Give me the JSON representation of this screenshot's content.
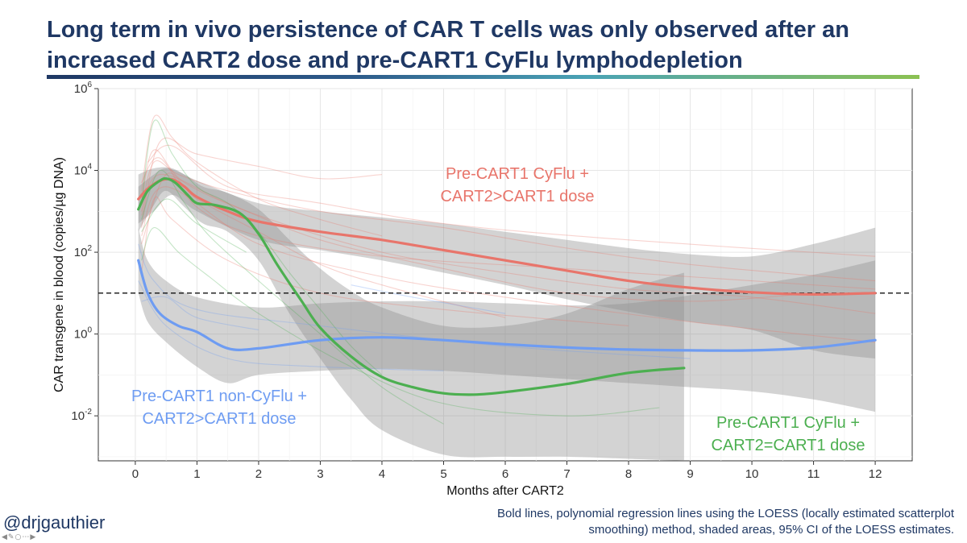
{
  "slide": {
    "title": "Long term in vivo persistence of CAR T cells was only observed after an increased CART2 dose and pre-CART1 CyFlu lymphodepletion",
    "handle": "@drjgauthier",
    "footnote_line1": "Bold lines, polynomial regression lines using the LOESS (locally estimated scatterplot",
    "footnote_line2": "smoothing) method, shaded areas, 95% CI of the LOESS estimates.",
    "toolbar_icons": [
      "arrow-left-icon",
      "pencil-icon",
      "view-icon",
      "more-icon",
      "arrow-right-icon"
    ]
  },
  "chart_data": {
    "type": "line",
    "xlabel": "Months after CART2",
    "ylabel": "CAR transgene in blood (copies/µg DNA)",
    "xlim": [
      -0.6,
      12.6
    ],
    "ylim_log10": [
      -3.1,
      6
    ],
    "y_scale": "log10",
    "x_ticks": [
      "0",
      "1",
      "2",
      "3",
      "4",
      "5",
      "6",
      "7",
      "8",
      "9",
      "10",
      "11",
      "12"
    ],
    "y_ticks": [
      {
        "base": "10",
        "exp": "6",
        "log": 6
      },
      {
        "base": "10",
        "exp": "4",
        "log": 4
      },
      {
        "base": "10",
        "exp": "2",
        "log": 2
      },
      {
        "base": "10",
        "exp": "0",
        "log": 0
      },
      {
        "base": "10",
        "exp": "-2",
        "log": -2
      }
    ],
    "grid": true,
    "threshold": {
      "value": 10,
      "style": "dashed"
    },
    "series": [
      {
        "name_line1": "Pre-CART1 CyFlu +",
        "name_line2": "CART2>CART1 dose",
        "color": "#e8756b",
        "loess": [
          [
            0.05,
            3.3
          ],
          [
            0.2,
            3.55
          ],
          [
            0.4,
            3.75
          ],
          [
            0.6,
            3.78
          ],
          [
            0.8,
            3.6
          ],
          [
            1,
            3.35
          ],
          [
            1.5,
            3.0
          ],
          [
            2,
            2.75
          ],
          [
            3,
            2.5
          ],
          [
            4,
            2.3
          ],
          [
            5,
            2.05
          ],
          [
            6,
            1.8
          ],
          [
            7,
            1.55
          ],
          [
            8,
            1.3
          ],
          [
            9,
            1.13
          ],
          [
            10,
            1.02
          ],
          [
            11,
            0.97
          ],
          [
            12,
            1.0
          ]
        ],
        "ci_upper": [
          [
            0.05,
            3.9
          ],
          [
            0.3,
            4.05
          ],
          [
            0.6,
            4.05
          ],
          [
            1,
            3.75
          ],
          [
            2,
            3.2
          ],
          [
            3,
            3.0
          ],
          [
            4,
            2.85
          ],
          [
            5,
            2.7
          ],
          [
            6,
            2.5
          ],
          [
            7,
            2.3
          ],
          [
            8,
            2.1
          ],
          [
            9,
            1.95
          ],
          [
            10,
            1.9
          ],
          [
            11,
            2.2
          ],
          [
            12,
            2.6
          ]
        ],
        "ci_lower": [
          [
            0.05,
            2.7
          ],
          [
            0.3,
            3.0
          ],
          [
            0.6,
            3.4
          ],
          [
            1,
            3.0
          ],
          [
            2,
            2.3
          ],
          [
            3,
            2.05
          ],
          [
            4,
            1.8
          ],
          [
            5,
            1.5
          ],
          [
            6,
            1.2
          ],
          [
            7,
            0.85
          ],
          [
            8,
            0.55
          ],
          [
            9,
            0.3
          ],
          [
            10,
            0.1
          ],
          [
            11,
            -0.4
          ],
          [
            12,
            -0.6
          ]
        ],
        "individual": [
          [
            [
              0.1,
              3.5
            ],
            [
              0.3,
              5.3
            ],
            [
              0.6,
              4.8
            ],
            [
              1,
              4.2
            ],
            [
              2,
              3.3
            ],
            [
              3,
              2.8
            ],
            [
              4,
              2.4
            ]
          ],
          [
            [
              0.1,
              3.0
            ],
            [
              0.3,
              4.2
            ],
            [
              0.7,
              3.9
            ],
            [
              1.5,
              3.5
            ],
            [
              3,
              3.0
            ],
            [
              5,
              2.6
            ],
            [
              7,
              2.1
            ],
            [
              9,
              1.7
            ],
            [
              12,
              1.3
            ]
          ],
          [
            [
              0.1,
              2.6
            ],
            [
              0.4,
              4.7
            ],
            [
              1,
              4.4
            ],
            [
              2,
              4.1
            ],
            [
              3,
              3.8
            ],
            [
              4,
              3.9
            ]
          ],
          [
            [
              0.1,
              3.2
            ],
            [
              0.3,
              4.5
            ],
            [
              0.8,
              3.7
            ],
            [
              2,
              2.9
            ],
            [
              4,
              2.0
            ],
            [
              6,
              1.5
            ],
            [
              8,
              1.1
            ],
            [
              10,
              0.9
            ],
            [
              12,
              0.5
            ]
          ],
          [
            [
              0.1,
              2.2
            ],
            [
              0.5,
              3.9
            ],
            [
              1,
              3.3
            ],
            [
              2,
              2.5
            ],
            [
              3,
              1.7
            ],
            [
              4,
              1.2
            ],
            [
              6,
              0.4
            ]
          ],
          [
            [
              0.1,
              3.7
            ],
            [
              0.4,
              4.3
            ],
            [
              1,
              3.1
            ],
            [
              2,
              2.4
            ],
            [
              4,
              1.9
            ],
            [
              7,
              1.6
            ],
            [
              10,
              1.3
            ],
            [
              12,
              1.1
            ]
          ],
          [
            [
              0.1,
              2.9
            ],
            [
              0.4,
              3.9
            ],
            [
              1.5,
              3.2
            ],
            [
              3,
              2.3
            ],
            [
              5,
              1.6
            ],
            [
              7,
              1.0
            ],
            [
              9,
              0.8
            ],
            [
              11,
              1.0
            ]
          ],
          [
            [
              0.1,
              1.5
            ],
            [
              0.3,
              3.3
            ],
            [
              0.6,
              2.8
            ],
            [
              1.5,
              1.8
            ],
            [
              3,
              1.0
            ],
            [
              5,
              0.6
            ],
            [
              8,
              0.2
            ]
          ],
          [
            [
              0.2,
              4.2
            ],
            [
              0.6,
              4.6
            ],
            [
              1.5,
              3.6
            ],
            [
              3,
              3.2
            ],
            [
              5,
              2.7
            ],
            [
              8,
              2.3
            ],
            [
              12,
              1.9
            ]
          ],
          [
            [
              0.1,
              2.4
            ],
            [
              0.5,
              3.6
            ],
            [
              2,
              2.2
            ],
            [
              4,
              1.4
            ],
            [
              6,
              0.9
            ],
            [
              9,
              0.3
            ],
            [
              12,
              -0.2
            ]
          ]
        ]
      },
      {
        "name_line1": "Pre-CART1 non-CyFlu +",
        "name_line2": "CART2>CART1 dose",
        "color": "#6e9cf2",
        "loess": [
          [
            0.05,
            1.8
          ],
          [
            0.2,
            1.0
          ],
          [
            0.4,
            0.5
          ],
          [
            0.7,
            0.2
          ],
          [
            1,
            0.05
          ],
          [
            1.5,
            -0.35
          ],
          [
            2,
            -0.35
          ],
          [
            3,
            -0.15
          ],
          [
            4,
            -0.08
          ],
          [
            5,
            -0.15
          ],
          [
            6,
            -0.25
          ],
          [
            7,
            -0.33
          ],
          [
            8,
            -0.38
          ],
          [
            9,
            -0.4
          ],
          [
            10,
            -0.4
          ],
          [
            11,
            -0.33
          ],
          [
            12,
            -0.15
          ]
        ],
        "ci_upper": [
          [
            0.05,
            2.6
          ],
          [
            0.2,
            1.8
          ],
          [
            0.5,
            1.3
          ],
          [
            1,
            0.9
          ],
          [
            2,
            0.65
          ],
          [
            3,
            0.75
          ],
          [
            4,
            0.8
          ],
          [
            5,
            0.8
          ],
          [
            6,
            0.75
          ],
          [
            7,
            0.7
          ],
          [
            8,
            0.75
          ],
          [
            9,
            0.95
          ],
          [
            10,
            1.2
          ],
          [
            11,
            1.45
          ],
          [
            12,
            1.8
          ]
        ],
        "ci_lower": [
          [
            0.05,
            1.0
          ],
          [
            0.2,
            0.3
          ],
          [
            0.5,
            -0.2
          ],
          [
            1,
            -0.8
          ],
          [
            1.5,
            -1.2
          ],
          [
            2,
            -1.0
          ],
          [
            3,
            -0.9
          ],
          [
            4,
            -0.85
          ],
          [
            5,
            -0.9
          ],
          [
            6,
            -1.0
          ],
          [
            7,
            -1.1
          ],
          [
            8,
            -1.2
          ],
          [
            9,
            -1.3
          ],
          [
            10,
            -1.4
          ],
          [
            11,
            -1.6
          ],
          [
            12,
            -1.9
          ]
        ],
        "individual": [
          [
            [
              0.05,
              2.2
            ],
            [
              0.3,
              1.3
            ],
            [
              1,
              0.6
            ],
            [
              3,
              0.2
            ],
            [
              6,
              -0.3
            ],
            [
              9,
              -0.6
            ]
          ],
          [
            [
              0.05,
              1.3
            ],
            [
              0.5,
              0.2
            ],
            [
              1.5,
              -0.6
            ],
            [
              3,
              -0.8
            ],
            [
              5,
              -0.9
            ]
          ],
          [
            [
              0.1,
              0.8
            ],
            [
              0.5,
              0.9
            ],
            [
              1,
              0.4
            ],
            [
              2,
              0.1
            ]
          ],
          [
            [
              3.5,
              1.2
            ],
            [
              4.5,
              0.9
            ],
            [
              6,
              0.5
            ]
          ]
        ]
      },
      {
        "name_line1": "Pre-CART1 CyFlu +",
        "name_line2": "CART2=CART1 dose",
        "color": "#4caf50",
        "loess": [
          [
            0.05,
            3.05
          ],
          [
            0.2,
            3.5
          ],
          [
            0.4,
            3.75
          ],
          [
            0.5,
            3.8
          ],
          [
            0.65,
            3.7
          ],
          [
            0.85,
            3.4
          ],
          [
            1,
            3.2
          ],
          [
            1.3,
            3.15
          ],
          [
            1.7,
            2.95
          ],
          [
            2,
            2.45
          ],
          [
            2.3,
            1.7
          ],
          [
            2.7,
            0.8
          ],
          [
            3,
            0.15
          ],
          [
            3.5,
            -0.55
          ],
          [
            4,
            -1.05
          ],
          [
            4.5,
            -1.3
          ],
          [
            5,
            -1.45
          ],
          [
            5.5,
            -1.48
          ],
          [
            6,
            -1.42
          ],
          [
            7,
            -1.22
          ],
          [
            8,
            -0.95
          ],
          [
            8.9,
            -0.83
          ]
        ],
        "ci_upper": [
          [
            0.05,
            3.6
          ],
          [
            0.3,
            3.9
          ],
          [
            0.5,
            4.05
          ],
          [
            0.8,
            3.9
          ],
          [
            1.1,
            3.6
          ],
          [
            1.5,
            3.45
          ],
          [
            2,
            3.05
          ],
          [
            2.5,
            2.3
          ],
          [
            3,
            1.6
          ],
          [
            3.5,
            1.05
          ],
          [
            4,
            0.65
          ],
          [
            5,
            0.2
          ],
          [
            6,
            0.2
          ],
          [
            7,
            0.5
          ],
          [
            8,
            1.1
          ],
          [
            8.9,
            1.5
          ]
        ],
        "ci_lower": [
          [
            0.05,
            2.5
          ],
          [
            0.3,
            3.15
          ],
          [
            0.5,
            3.5
          ],
          [
            0.8,
            3.1
          ],
          [
            1.1,
            2.7
          ],
          [
            1.5,
            2.5
          ],
          [
            2,
            1.8
          ],
          [
            2.5,
            0.5
          ],
          [
            3,
            -0.6
          ],
          [
            3.5,
            -1.6
          ],
          [
            4,
            -2.35
          ],
          [
            5,
            -2.95
          ],
          [
            6,
            -3.0
          ],
          [
            7,
            -3.0
          ],
          [
            8,
            -3.05
          ],
          [
            8.9,
            -3.1
          ]
        ],
        "individual": [
          [
            [
              0.1,
              3.2
            ],
            [
              0.3,
              5.2
            ],
            [
              0.6,
              4.4
            ],
            [
              1,
              3.6
            ],
            [
              1.5,
              3.2
            ],
            [
              2,
              2.5
            ],
            [
              2.5,
              1.5
            ],
            [
              3,
              0.6
            ],
            [
              3.5,
              -0.3
            ],
            [
              4,
              -1.0
            ]
          ],
          [
            [
              0.1,
              2.8
            ],
            [
              0.4,
              4.0
            ],
            [
              0.8,
              3.2
            ],
            [
              1.2,
              2.4
            ],
            [
              2,
              1.3
            ],
            [
              3,
              0.0
            ],
            [
              4,
              -1.3
            ],
            [
              5,
              -2.2
            ]
          ],
          [
            [
              0.1,
              1.8
            ],
            [
              0.3,
              2.6
            ],
            [
              0.7,
              2.0
            ],
            [
              1.2,
              1.4
            ],
            [
              2,
              0.5
            ],
            [
              3.5,
              -0.8
            ],
            [
              5,
              -1.7
            ],
            [
              7,
              -2.0
            ],
            [
              8.5,
              -1.8
            ]
          ],
          [
            [
              0.1,
              2.5
            ],
            [
              0.5,
              3.3
            ],
            [
              1,
              2.7
            ],
            [
              1.8,
              2.0
            ]
          ]
        ]
      }
    ]
  }
}
